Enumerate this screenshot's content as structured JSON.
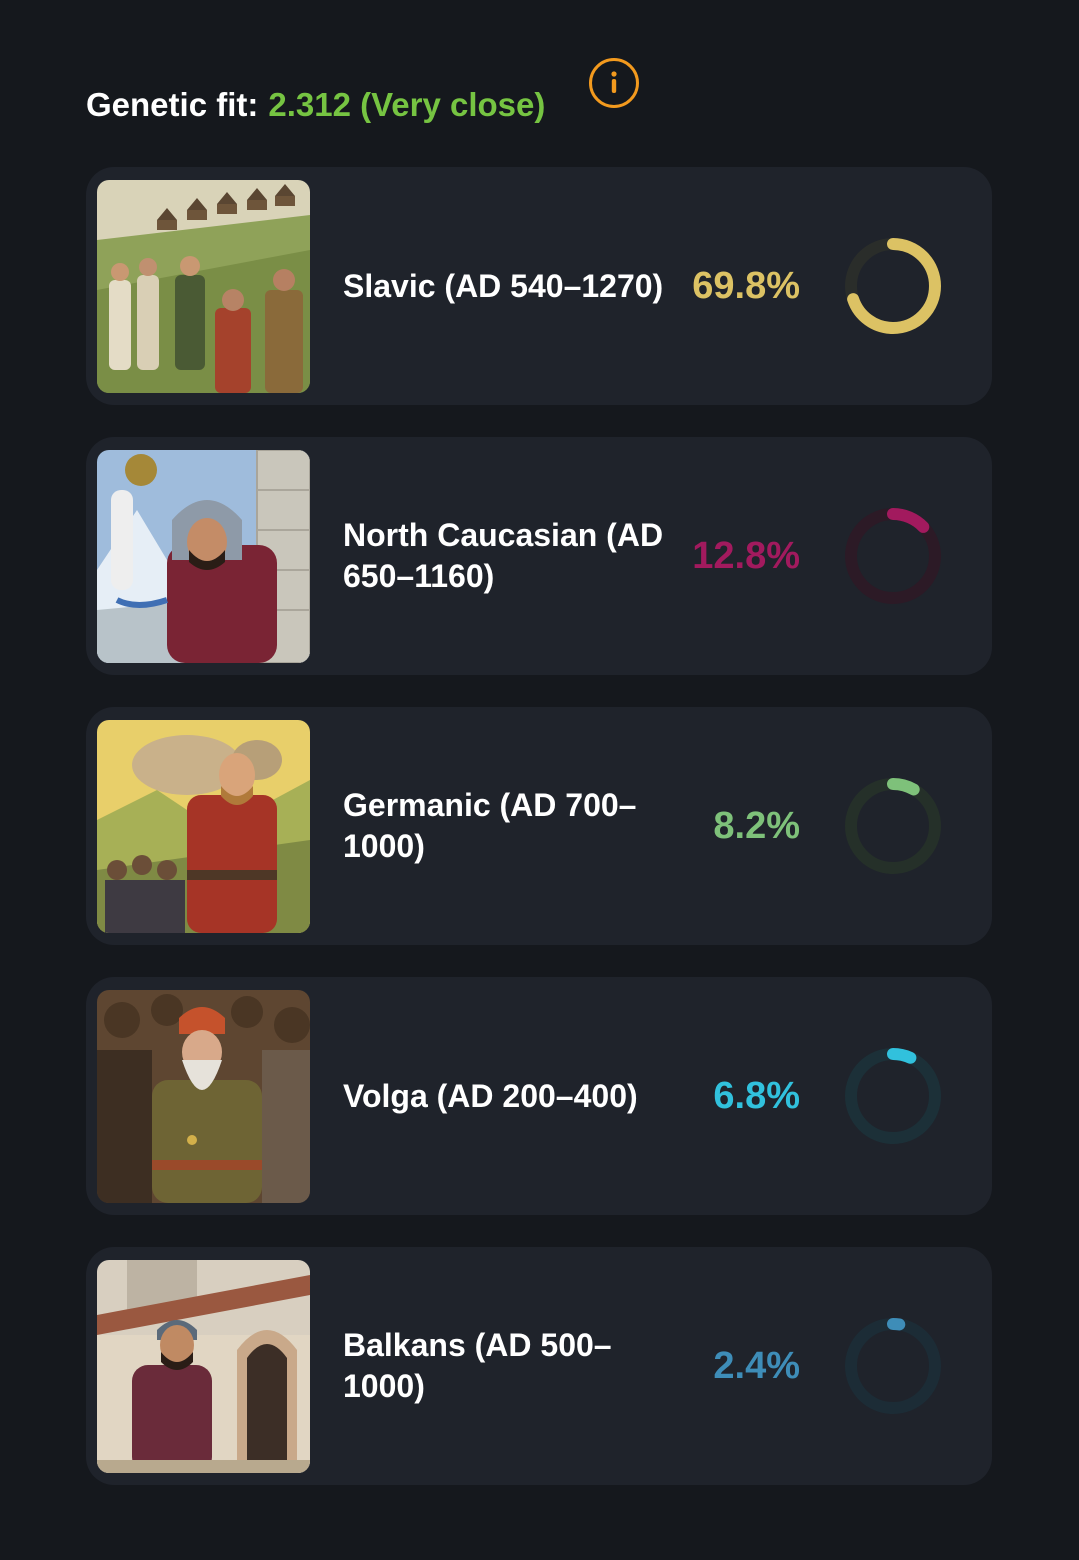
{
  "header": {
    "label": "Genetic fit:",
    "value": "2.312 (Very close)",
    "value_color": "#76c442",
    "info_icon": "info-circle-icon",
    "info_color": "#f39a1e"
  },
  "populations": [
    {
      "name": "Slavic (AD 540–1270)",
      "percent_label": "69.8%",
      "fraction": 0.698,
      "color": "#dcc264",
      "track_color": "#2a2d2a"
    },
    {
      "name": "North Caucasian (AD 650–1160)",
      "percent_label": "12.8%",
      "fraction": 0.128,
      "color": "#a21a5e",
      "track_color": "#2c1a26"
    },
    {
      "name": "Germanic (AD 700–1000)",
      "percent_label": "8.2%",
      "fraction": 0.082,
      "color": "#7ec17a",
      "track_color": "#253029"
    },
    {
      "name": "Volga (AD 200–400)",
      "percent_label": "6.8%",
      "fraction": 0.068,
      "color": "#31c1dd",
      "track_color": "#1c3038"
    },
    {
      "name": "Balkans (AD 500–1000)",
      "percent_label": "2.4%",
      "fraction": 0.024,
      "color": "#3e8db8",
      "track_color": "#1c2c36"
    }
  ]
}
